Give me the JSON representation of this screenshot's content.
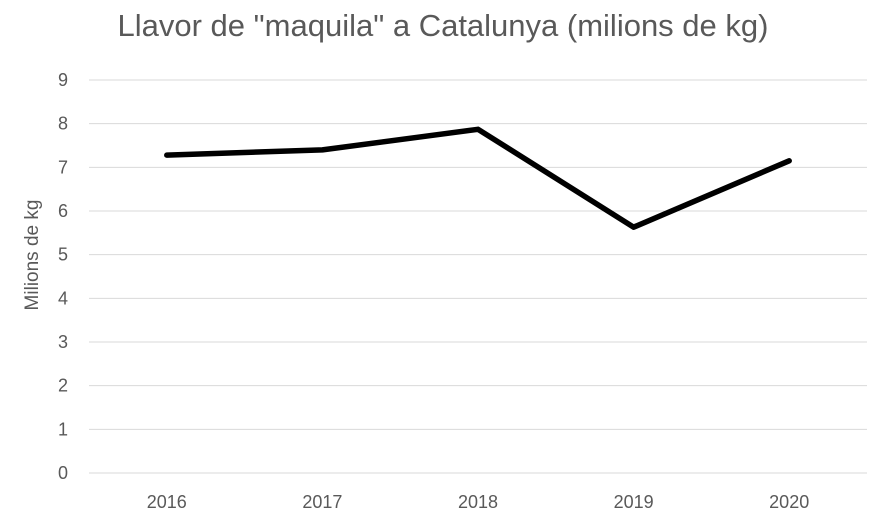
{
  "chart_data": {
    "type": "line",
    "title": "Llavor de \"maquila\" a Catalunya (milions de kg)",
    "ylabel": "Milions de kg",
    "xlabel": "",
    "categories": [
      "2016",
      "2017",
      "2018",
      "2019",
      "2020"
    ],
    "series": [
      {
        "values": [
          7.28,
          7.4,
          7.87,
          5.63,
          7.15
        ]
      }
    ],
    "ylim": [
      0,
      9
    ],
    "yticks": [
      "0",
      "1",
      "2",
      "3",
      "4",
      "5",
      "6",
      "7",
      "8",
      "9"
    ],
    "grid": true,
    "legend": "none",
    "line_color": "#000000",
    "grid_color": "#d9d9d9",
    "text_color": "#595959"
  }
}
